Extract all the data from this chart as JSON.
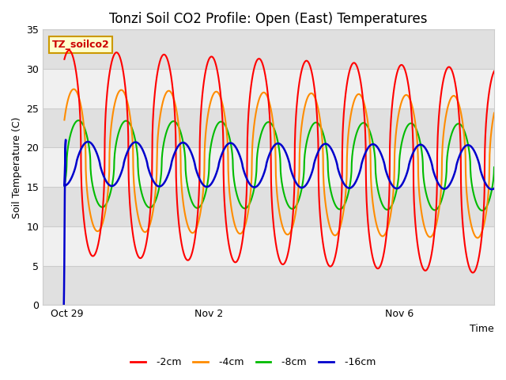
{
  "title": "Tonzi Soil CO2 Profile: Open (East) Temperatures",
  "xlabel": "Time",
  "ylabel": "Soil Temperature (C)",
  "ylim": [
    0,
    35
  ],
  "colors": {
    "2cm": "#ff0000",
    "4cm": "#ff8c00",
    "8cm": "#00bb00",
    "16cm": "#0000cc"
  },
  "tick_labels": [
    "Oct 29",
    "Nov 2",
    "Nov 6"
  ],
  "legend_label_box": "TZ_soilco2",
  "legend_box_color": "#ffffcc",
  "legend_box_edge": "#cc9900",
  "bg_gray": "#e0e0e0",
  "bg_white": "#f5f5f5",
  "title_fontsize": 12,
  "axis_fontsize": 9,
  "tick_fontsize": 9
}
